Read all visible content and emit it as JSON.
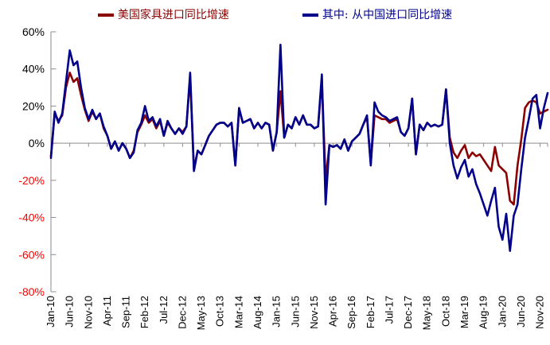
{
  "page": {
    "background": "#FFFFFF"
  },
  "legend": {
    "items": [
      {
        "label": "美国家具进口同比增速",
        "color": "#8B0000"
      },
      {
        "label": "其中: 从中国进口同比增速",
        "color": "#00008B"
      }
    ]
  },
  "chart_data": {
    "type": "line",
    "title": "",
    "xlabel": "",
    "ylabel": "",
    "x_start": "Jan-10",
    "x_end": "Jan-21",
    "n_points": 133,
    "x_tick_every": 5,
    "x_tick_labels": [
      "Jan-10",
      "Jun-10",
      "Nov-10",
      "Apr-11",
      "Sep-11",
      "Feb-12",
      "Jul-12",
      "Dec-12",
      "May-13",
      "Oct-13",
      "Mar-14",
      "Aug-14",
      "Jan-15",
      "Jun-15",
      "Nov-15",
      "Apr-16",
      "Sep-16",
      "Feb-17",
      "Jul-17",
      "Dec-17",
      "May-18",
      "Oct-18",
      "Mar-19",
      "Aug-19",
      "Jan-20",
      "Jun-20",
      "Nov-20"
    ],
    "ylim": [
      -80,
      60
    ],
    "y_ticks": [
      60,
      40,
      20,
      0,
      -20,
      -40,
      -60,
      -80
    ],
    "y_tick_labels": [
      "60%",
      "40%",
      "20%",
      "0%",
      "-20%",
      "-40%",
      "-60%",
      "-80%"
    ],
    "positive_tick_color": "#000000",
    "negative_tick_color": "#FF0000",
    "axis_color": "#8C8C8C",
    "grid": "zero-line-only",
    "legend_position": "top",
    "series": [
      {
        "name": "美国家具进口同比增速",
        "color": "#8B0000",
        "values": [
          -7,
          16,
          12,
          15,
          30,
          38,
          33,
          35,
          26,
          18,
          12,
          17,
          13,
          16,
          8,
          4,
          -3,
          1,
          -4,
          0,
          -3,
          -8,
          -4,
          6,
          10,
          15,
          11,
          13,
          8,
          12,
          4,
          11,
          8,
          5,
          8,
          6,
          9,
          36,
          -14,
          -4,
          -6,
          -1,
          4,
          7,
          10,
          11,
          11,
          9,
          11,
          -12,
          18,
          11,
          12,
          13,
          8,
          11,
          8,
          11,
          10,
          -4,
          6,
          28,
          3,
          10,
          8,
          14,
          10,
          15,
          10,
          10,
          8,
          9,
          34,
          -20,
          -1,
          -2,
          -1,
          -3,
          2,
          -4,
          1,
          3,
          5,
          10,
          14,
          -11,
          15,
          14,
          13,
          13,
          11,
          12,
          13,
          6,
          4,
          8,
          24,
          -6,
          10,
          7,
          11,
          9,
          10,
          9,
          10,
          29,
          3,
          -5,
          -8,
          -4,
          -1,
          -8,
          -5,
          -7,
          -6,
          -9,
          -12,
          -15,
          -2,
          -12,
          -14,
          -16,
          -31,
          -33,
          -12,
          2,
          19,
          22,
          23,
          22,
          16,
          17,
          18
        ]
      },
      {
        "name": "其中: 从中国进口同比增速",
        "color": "#00008B",
        "values": [
          -8,
          17,
          11,
          16,
          33,
          50,
          42,
          44,
          30,
          19,
          13,
          18,
          13,
          16,
          9,
          4,
          -3,
          1,
          -4,
          0,
          -3,
          -8,
          -5,
          7,
          11,
          20,
          12,
          14,
          9,
          13,
          4,
          12,
          8,
          5,
          8,
          5,
          9,
          38,
          -15,
          -4,
          -6,
          -1,
          4,
          7,
          10,
          11,
          11,
          9,
          11,
          -12,
          19,
          11,
          12,
          13,
          8,
          11,
          8,
          11,
          10,
          -4,
          6,
          53,
          3,
          10,
          8,
          14,
          10,
          15,
          10,
          10,
          8,
          9,
          37,
          -33,
          -1,
          -2,
          -1,
          -3,
          2,
          -4,
          1,
          3,
          5,
          10,
          15,
          -12,
          22,
          17,
          15,
          14,
          12,
          13,
          14,
          6,
          4,
          8,
          24,
          -6,
          10,
          7,
          11,
          9,
          10,
          9,
          10,
          29,
          0,
          -12,
          -19,
          -13,
          -9,
          -18,
          -14,
          -22,
          -27,
          -33,
          -39,
          -31,
          -24,
          -45,
          -52,
          -38,
          -58,
          -39,
          -33,
          -14,
          3,
          13,
          24,
          26,
          8,
          19,
          27
        ]
      }
    ]
  }
}
